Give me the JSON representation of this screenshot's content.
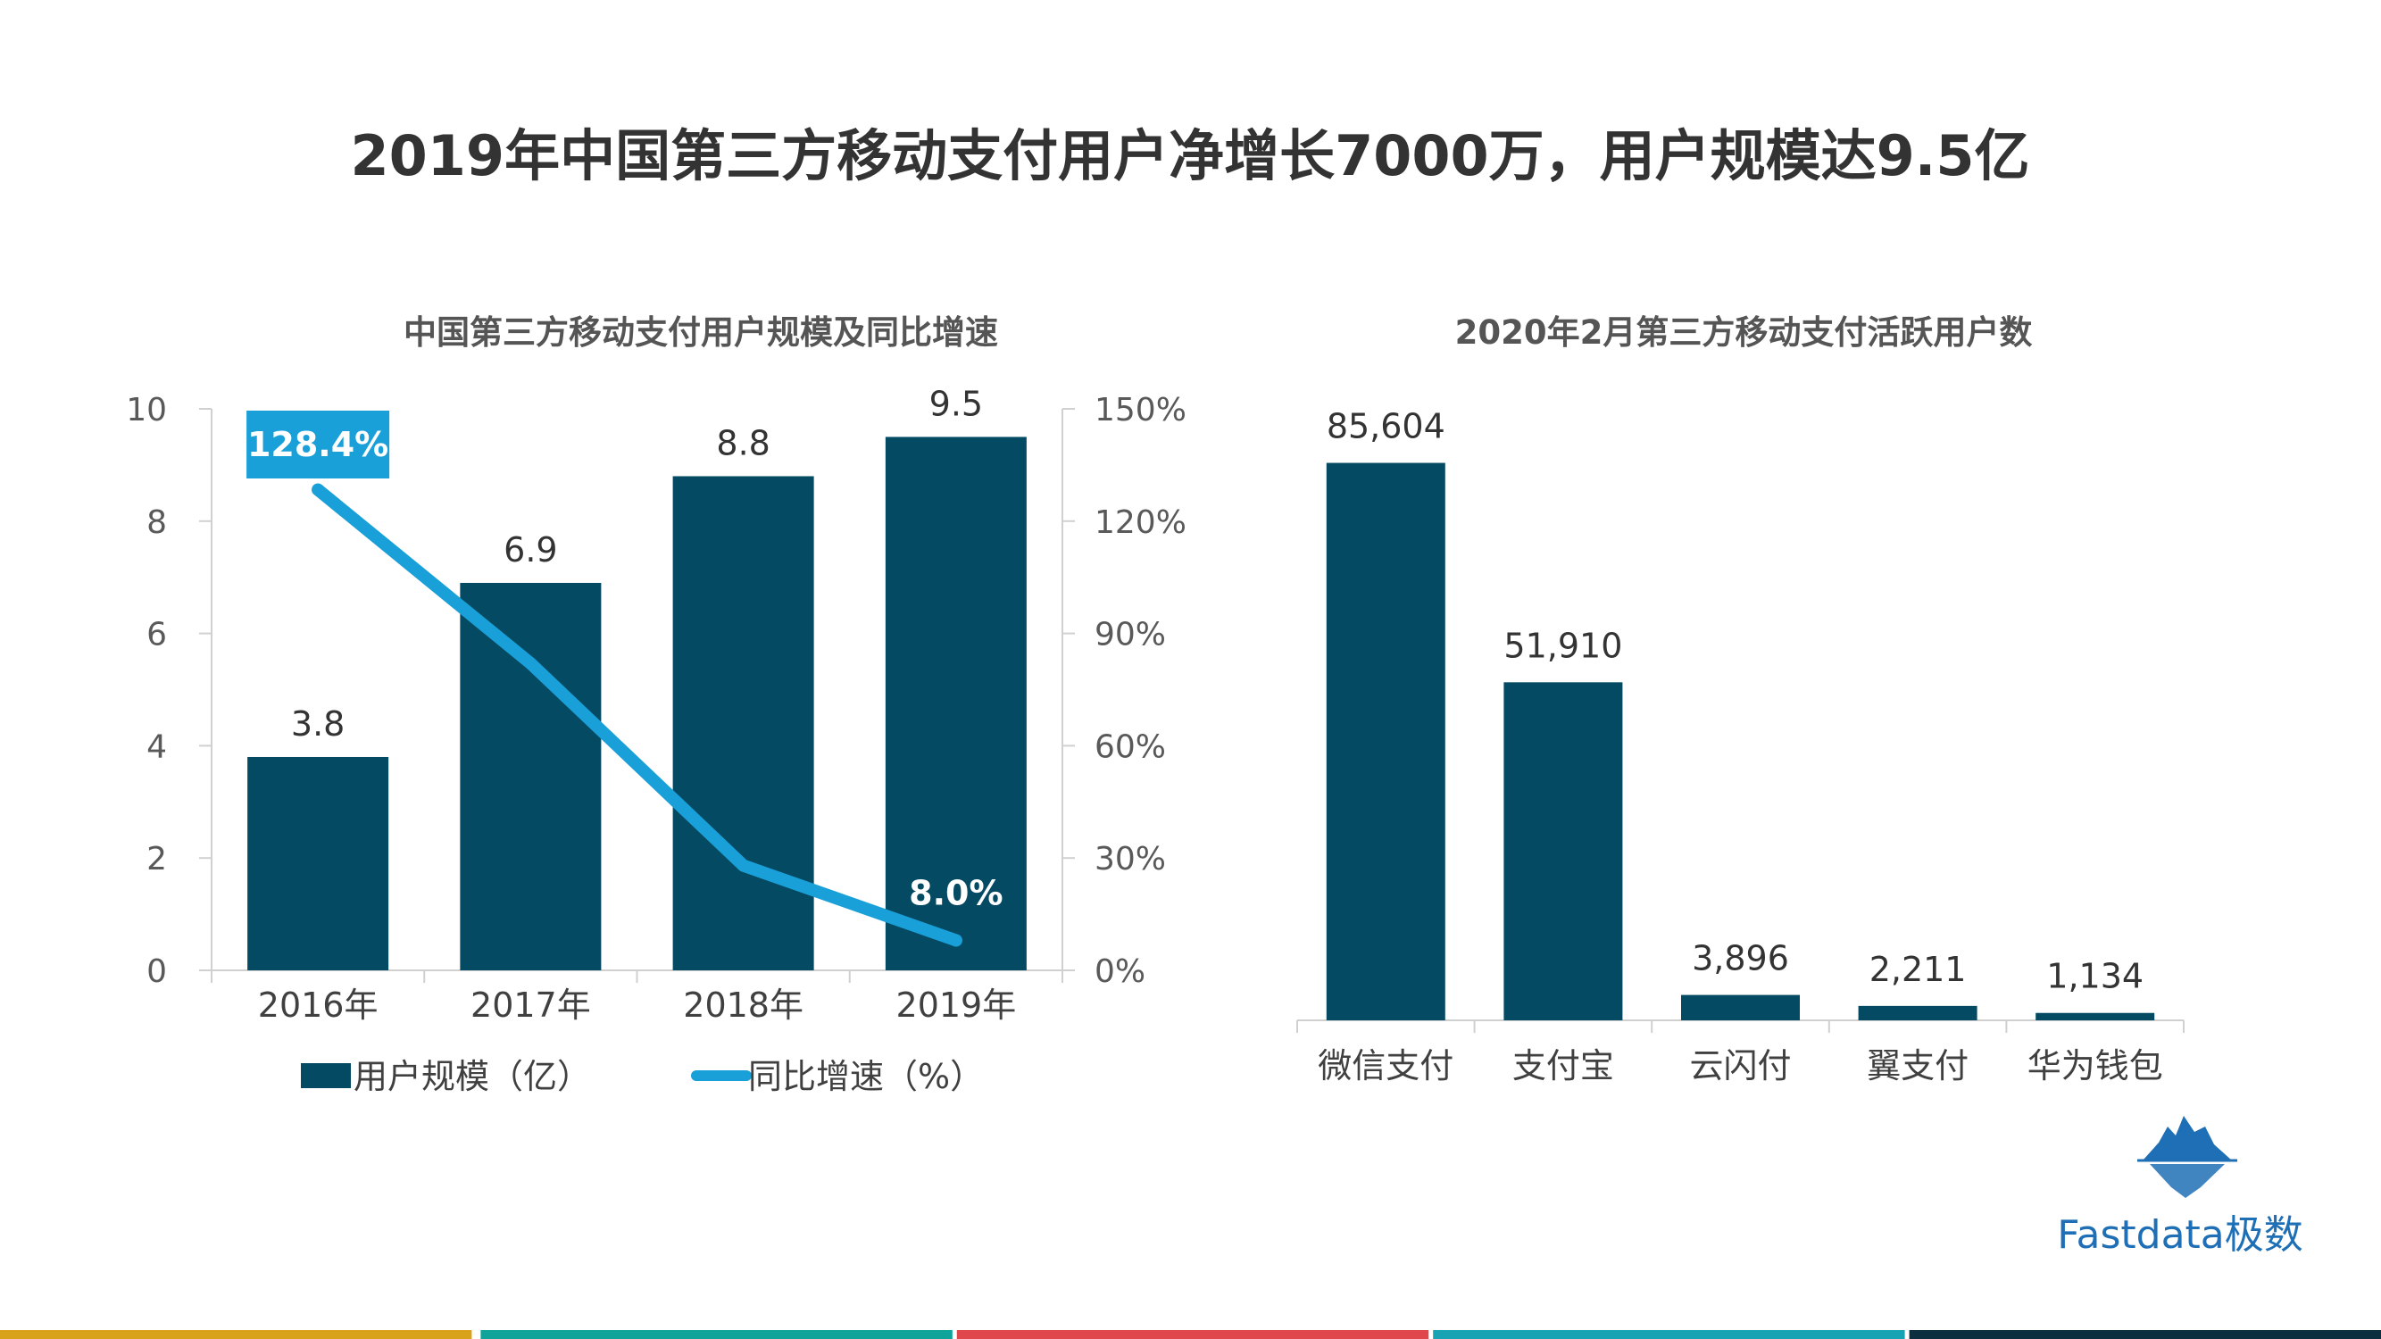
{
  "page": {
    "title": "2019年中国第三方移动支付用户净增长7000万，用户规模达9.5亿"
  },
  "colors": {
    "bar": "#044a63",
    "line": "#1aa0d8",
    "callout": "#1aa0d8",
    "footer": [
      "#d9a21b",
      "#0fa39a",
      "#e0474c",
      "#18a3b5",
      "#0b2f3f"
    ]
  },
  "logo": {
    "text": "Fastdata极数",
    "icon": "iceberg-icon"
  },
  "chart_data": [
    {
      "type": "bar",
      "title": "中国第三方移动支付用户规模及同比增速",
      "categories": [
        "2016年",
        "2017年",
        "2018年",
        "2019年"
      ],
      "series": [
        {
          "name": "用户规模（亿）",
          "type": "bar",
          "axis": "left",
          "values": [
            3.8,
            6.9,
            8.8,
            9.5
          ],
          "labels": [
            "3.8",
            "6.9",
            "8.8",
            "9.5"
          ]
        },
        {
          "name": "同比增速（%）",
          "type": "line",
          "axis": "right",
          "values": [
            128.4,
            82,
            28,
            8.0
          ],
          "callouts": [
            {
              "index": 0,
              "text": "128.4%"
            },
            {
              "index": 3,
              "text": "8.0%"
            }
          ]
        }
      ],
      "y_left": {
        "min": 0,
        "max": 10,
        "ticks": [
          "0",
          "2",
          "4",
          "6",
          "8",
          "10"
        ]
      },
      "y_right": {
        "min": 0,
        "max": 150,
        "ticks": [
          "0%",
          "30%",
          "60%",
          "90%",
          "120%",
          "150%"
        ]
      },
      "legend": [
        "用户规模（亿）",
        "同比增速（%）"
      ],
      "legend_position": "bottom"
    },
    {
      "type": "bar",
      "title": "2020年2月第三方移动支付活跃用户数",
      "categories": [
        "微信支付",
        "支付宝",
        "云闪付",
        "翼支付",
        "华为钱包"
      ],
      "values": [
        85604,
        51910,
        3896,
        2211,
        1134
      ],
      "labels": [
        "85,604",
        "51,910",
        "3,896",
        "2,211",
        "1,134"
      ],
      "ylim": [
        0,
        95000
      ]
    }
  ]
}
